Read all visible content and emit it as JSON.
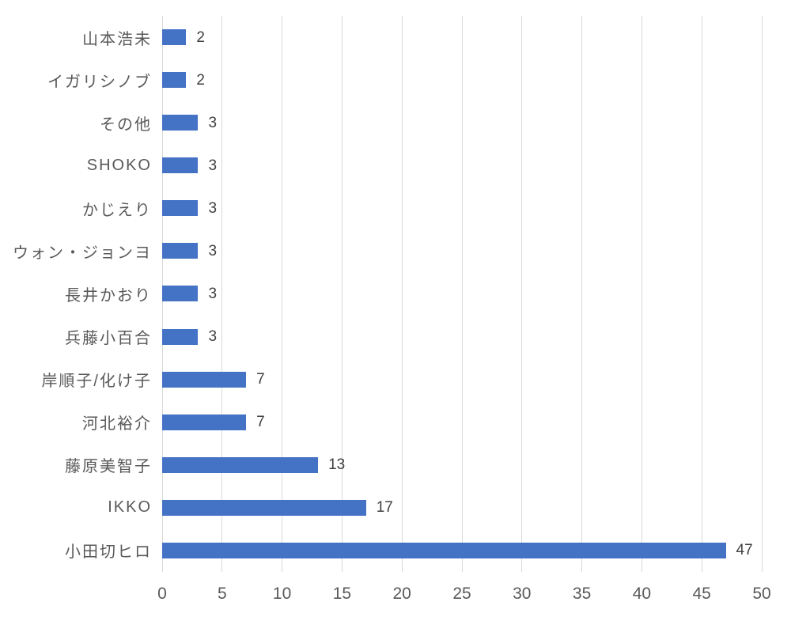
{
  "chart_data": {
    "type": "bar",
    "orientation": "horizontal",
    "title": "",
    "xlabel": "",
    "ylabel": "",
    "categories": [
      "山本浩未",
      "イガリシノブ",
      "その他",
      "SHOKO",
      "かじえり",
      "ウォン・ジョンヨ",
      "長井かおり",
      "兵藤小百合",
      "岸順子/化け子",
      "河北裕介",
      "藤原美智子",
      "IKKO",
      "小田切ヒロ"
    ],
    "values": [
      2,
      2,
      3,
      3,
      3,
      3,
      3,
      3,
      7,
      7,
      13,
      17,
      47
    ],
    "data_labels": true,
    "xlim": [
      0,
      50
    ],
    "xticks": [
      0,
      5,
      10,
      15,
      20,
      25,
      30,
      35,
      40,
      45,
      50
    ],
    "grid": "vertical-major",
    "legend": "none",
    "colors": {
      "bar": "#4472C4",
      "gridline": "#d9d9d9",
      "category_label": "#595959",
      "tick_label": "#595959",
      "value_label": "#404040",
      "background": "#ffffff"
    }
  }
}
